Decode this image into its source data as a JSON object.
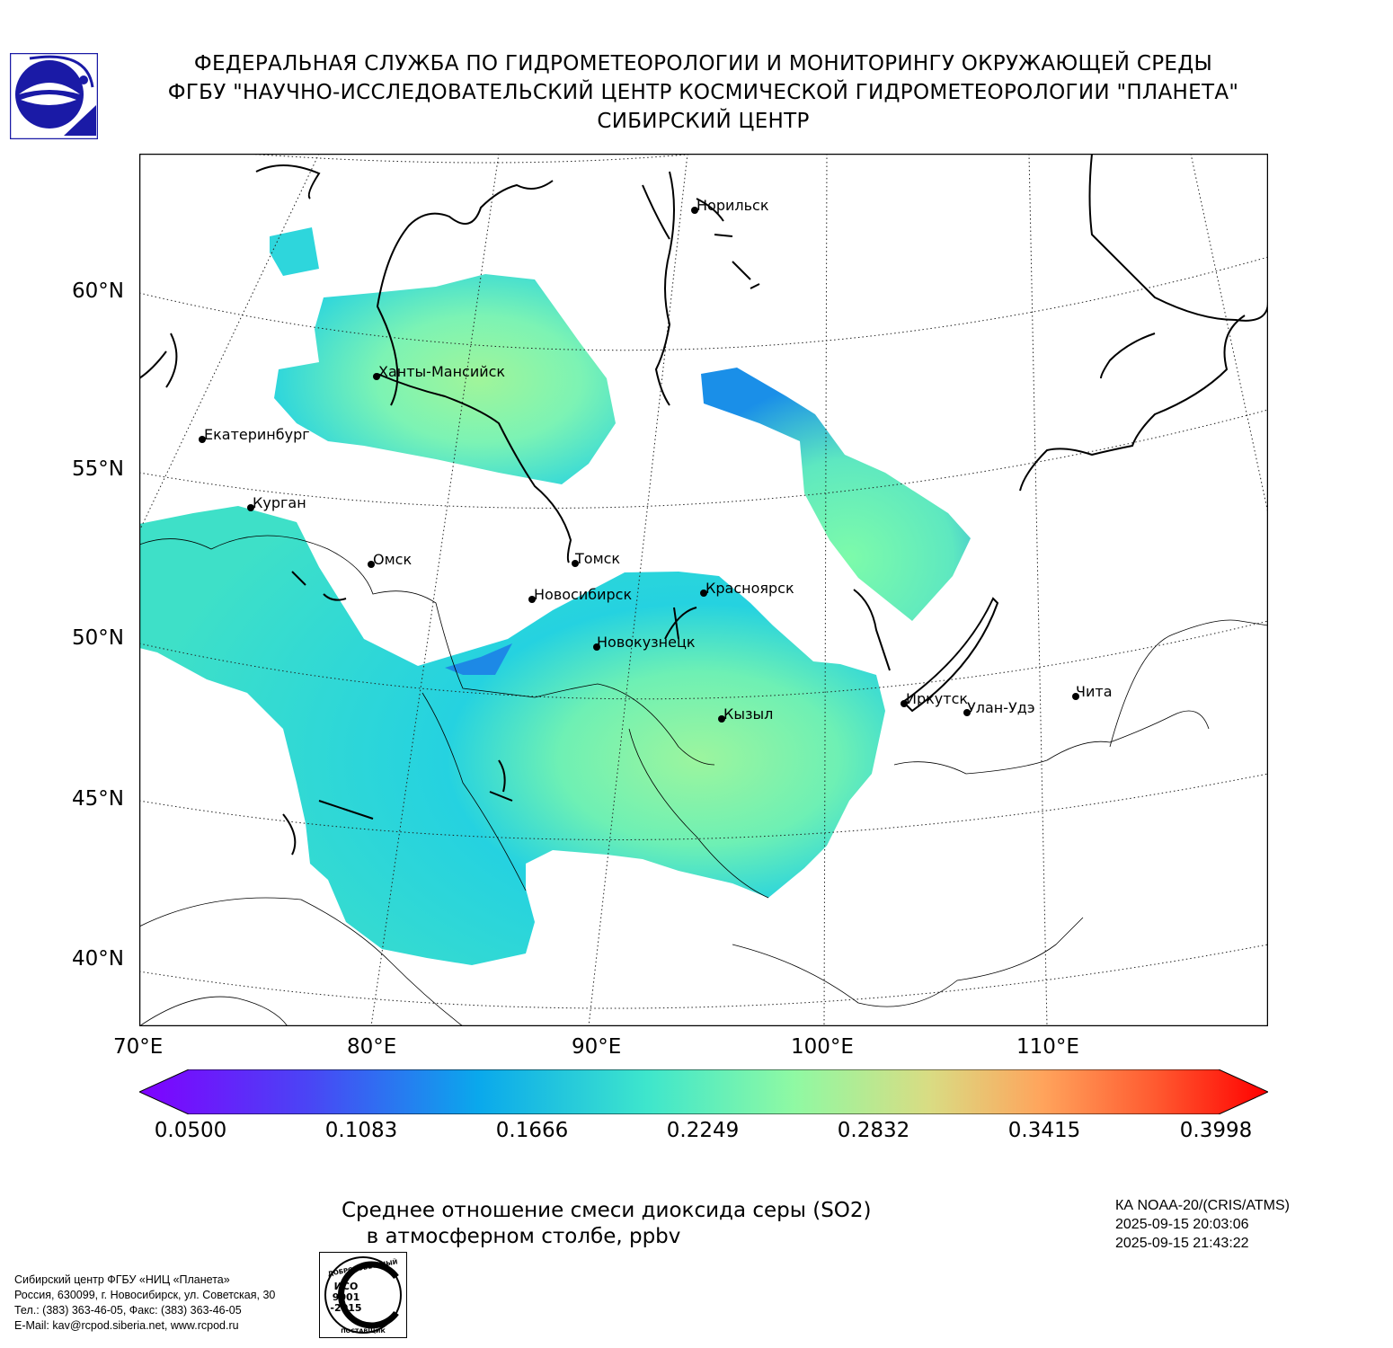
{
  "header": {
    "line1": "ФЕДЕРАЛЬНАЯ СЛУЖБА ПО ГИДРОМЕТЕОРОЛОГИИ И МОНИТОРИНГУ ОКРУЖАЮЩЕЙ СРЕДЫ",
    "line2": "ФГБУ \"НАУЧНО-ИССЛЕДОВАТЕЛЬСКИЙ ЦЕНТР КОСМИЧЕСКОЙ ГИДРОМЕТЕОРОЛОГИИ \"ПЛАНЕТА\"",
    "line3": "СИБИРСКИЙ ЦЕНТР"
  },
  "logo": {
    "icon": "roshydromet-logo-icon",
    "color": "#1a1aa6"
  },
  "map": {
    "lat_labels": [
      "60°N",
      "55°N",
      "50°N",
      "45°N",
      "40°N"
    ],
    "lon_labels": [
      "70°E",
      "80°E",
      "90°E",
      "100°E",
      "110°E"
    ],
    "cities": [
      {
        "name": "Норильск"
      },
      {
        "name": "Ханты-Мансийск"
      },
      {
        "name": "Екатеринбург"
      },
      {
        "name": "Курган"
      },
      {
        "name": "Омск"
      },
      {
        "name": "Томск"
      },
      {
        "name": "Новосибирск"
      },
      {
        "name": "Красноярск"
      },
      {
        "name": "Новокузнецк"
      },
      {
        "name": "Иркутск"
      },
      {
        "name": "Улан-Удэ"
      },
      {
        "name": "Чита"
      },
      {
        "name": "Кызыл"
      }
    ],
    "field_colors": {
      "low": "#1a4fe0",
      "mid": "#1fcfe0",
      "high": "#7dfbaa",
      "peak": "#a0f59a"
    }
  },
  "colorbar": {
    "ticks": [
      "0.0500",
      "0.1083",
      "0.1666",
      "0.2249",
      "0.2832",
      "0.3415",
      "0.3998"
    ],
    "colormap": "rainbow",
    "extend": "both"
  },
  "caption": {
    "line1": "Среднее отношение смеси диоксида серы (SO2)",
    "line2": "в атмосферном столбе, ppbv"
  },
  "satellite": {
    "name": "КА NOAA-20/(CRIS/ATMS)",
    "time_start": "2025-09-15 20:03:06",
    "time_end": "2025-09-15 21:43:22"
  },
  "contacts": {
    "line1": "Сибирский центр ФГБУ «НИЦ «Планета»",
    "line2": "Россия, 630099, г. Новосибирск, ул. Советская, 30",
    "line3": "Тел.: (383) 363-46-05, Факс: (383) 363-46-05",
    "line4": "E-Mail: kav@rcpod.siberia.net, www.rcpod.ru"
  },
  "iso_badge": {
    "top_text": "ДОБРОСОВЕСТНЫЙ",
    "code_line1": "ИСО",
    "code_line2": "9001",
    "code_line3": "-2015",
    "bottom_text": "ПОСТАВЩИК"
  }
}
